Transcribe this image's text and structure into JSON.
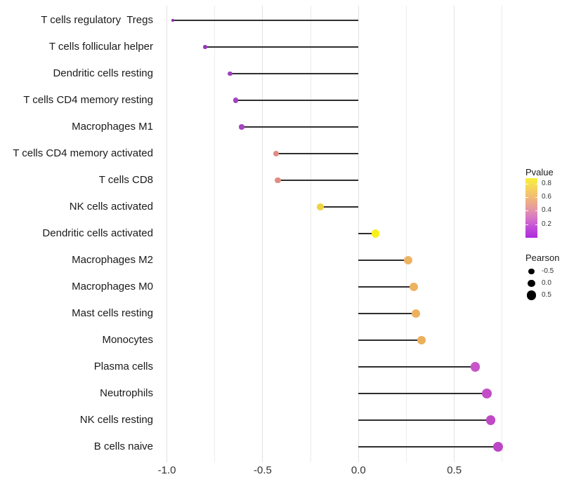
{
  "chart_data": {
    "type": "lollipop",
    "orientation": "horizontal",
    "title": "",
    "xlabel": "",
    "ylabel": "",
    "categories": [
      "T cells regulatory  Tregs",
      "T cells follicular helper",
      "Dendritic cells resting",
      "T cells CD4 memory resting",
      "Macrophages M1",
      "T cells CD4 memory activated",
      "T cells CD8",
      "NK cells activated",
      "Dendritic cells activated",
      "Macrophages M2",
      "Macrophages M0",
      "Mast cells resting",
      "Monocytes",
      "Plasma cells",
      "Neutrophils",
      "NK cells resting",
      "B cells naive"
    ],
    "series": [
      {
        "name": "Pearson",
        "values": [
          -0.97,
          -0.8,
          -0.67,
          -0.64,
          -0.61,
          -0.43,
          -0.42,
          -0.2,
          0.09,
          0.26,
          0.29,
          0.3,
          0.33,
          0.61,
          0.67,
          0.69,
          0.73
        ]
      },
      {
        "name": "Pvalue_approx_from_color",
        "values": [
          0.005,
          0.02,
          0.04,
          0.05,
          0.06,
          0.47,
          0.48,
          0.76,
          0.9,
          0.6,
          0.58,
          0.57,
          0.55,
          0.17,
          0.14,
          0.13,
          0.11
        ]
      }
    ],
    "point_colors": [
      "#8F2BB3",
      "#9836BB",
      "#A03EC0",
      "#A441C1",
      "#A644C2",
      "#DE8D85",
      "#DE8E84",
      "#EFD342",
      "#F8F01A",
      "#EDB464",
      "#EDB260",
      "#EDB15E",
      "#ECAF5B",
      "#C754C9",
      "#C24DC7",
      "#C04AC6",
      "#BD45C7"
    ],
    "x_axis": {
      "tick_labels": [
        "-1.0",
        "-0.5",
        "0.0",
        "0.5"
      ],
      "tick_values": [
        -1.0,
        -0.5,
        0.0,
        0.5
      ],
      "gridline_values": [
        -1.0,
        -0.75,
        -0.5,
        -0.25,
        0.0,
        0.25,
        0.5,
        0.75
      ],
      "range": [
        -1.02,
        0.78
      ],
      "grid": "on"
    },
    "stem_color": "#2e2e2e",
    "background": "#ffffff",
    "legend": {
      "position": "right",
      "pvalue": {
        "title": "Pvalue",
        "tick_labels": [
          "0.8",
          "0.6",
          "0.4",
          "0.2"
        ],
        "tick_values": [
          0.8,
          0.6,
          0.4,
          0.2
        ],
        "bar_top_value": 0.88,
        "bar_bottom_value": 0.0,
        "gradient_top_to_bottom": [
          "#F9EE3A",
          "#F6D55C",
          "#F1B878",
          "#E79BA0",
          "#D877C6",
          "#C04BD9",
          "#AC2EDC"
        ]
      },
      "pearson": {
        "title": "Pearson",
        "items": [
          {
            "label": "-0.5",
            "value": -0.5
          },
          {
            "label": "0.0",
            "value": 0.0
          },
          {
            "label": "0.5",
            "value": 0.5
          }
        ],
        "dot_color": "#000000"
      }
    }
  }
}
